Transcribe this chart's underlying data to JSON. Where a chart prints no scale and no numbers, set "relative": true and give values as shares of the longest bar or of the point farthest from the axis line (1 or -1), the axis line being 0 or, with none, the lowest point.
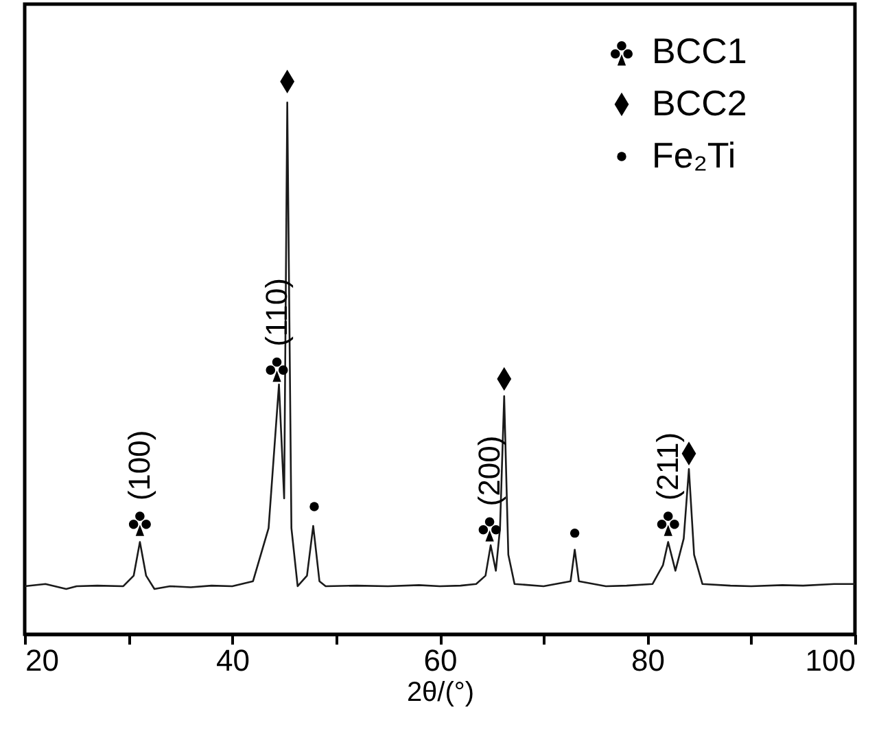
{
  "chart_data": {
    "type": "line",
    "xlabel": "2θ/(°)",
    "relative": true,
    "xlim": [
      20,
      100
    ],
    "xticks": [
      20,
      {
        "value": 30,
        "label": null
      },
      40,
      {
        "value": 50,
        "label": null
      },
      60,
      {
        "value": 70,
        "label": null
      },
      80,
      {
        "value": 90,
        "label": null
      },
      100
    ],
    "legend": "top right",
    "line_style": "solid",
    "series": [
      {
        "color": "#1a1a1a",
        "marker": "none",
        "x": [
          20,
          22,
          24,
          25,
          27,
          29.5,
          30.5,
          31.1,
          31.7,
          32.5,
          34,
          36,
          38,
          40,
          42,
          43.5,
          44.5,
          45.0,
          45.3,
          45.7,
          46.3,
          47.2,
          47.8,
          48.4,
          49,
          52,
          55,
          58,
          60,
          62,
          63.5,
          64.4,
          64.9,
          65.4,
          65.8,
          66.2,
          66.6,
          67.2,
          70,
          72.6,
          73,
          73.4,
          76,
          78,
          80.5,
          81.5,
          82,
          82.7,
          83.5,
          84,
          84.5,
          85.3,
          88,
          90,
          93,
          95,
          98,
          100
        ],
        "values": [
          0.087,
          0.091,
          0.082,
          0.087,
          0.088,
          0.087,
          0.106,
          0.167,
          0.106,
          0.082,
          0.087,
          0.085,
          0.088,
          0.087,
          0.096,
          0.192,
          0.452,
          0.246,
          0.962,
          0.192,
          0.087,
          0.106,
          0.196,
          0.096,
          0.087,
          0.088,
          0.087,
          0.089,
          0.087,
          0.088,
          0.091,
          0.106,
          0.161,
          0.115,
          0.192,
          0.431,
          0.144,
          0.091,
          0.087,
          0.096,
          0.153,
          0.096,
          0.087,
          0.088,
          0.091,
          0.125,
          0.167,
          0.115,
          0.173,
          0.299,
          0.144,
          0.091,
          0.088,
          0.087,
          0.089,
          0.088,
          0.091,
          0.091
        ]
      },
      {
        "type": "scatter",
        "name": "BCC1",
        "color": "#000000",
        "x": [
          31.1,
          44.3,
          64.8,
          82.0
        ],
        "values": [
          0.202,
          0.481,
          0.192,
          0.202
        ]
      },
      {
        "type": "scatter",
        "name": "BCC2",
        "marker": "diamond",
        "color": "#000000",
        "x": [
          45.3,
          66.2,
          84.0
        ],
        "values": [
          1.0,
          0.462,
          0.327
        ]
      },
      {
        "type": "scatter",
        "name": "Fe₂Ti",
        "marker": "circle",
        "color": "#000000",
        "x": [
          47.9,
          73.0
        ],
        "values": [
          0.231,
          0.183
        ]
      }
    ],
    "annotations": [
      "(100)",
      "(110)",
      "(200)",
      "(211)"
    ]
  }
}
